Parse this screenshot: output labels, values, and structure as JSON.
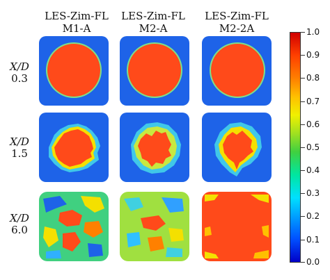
{
  "column_titles": [
    {
      "line1": "LES-Zim-FL",
      "line2": "M1-A"
    },
    {
      "line1": "LES-Zim-FL",
      "line2": "M2-A"
    },
    {
      "line1": "LES-Zim-FL",
      "line2": "M2-2A"
    }
  ],
  "row_labels": [
    {
      "var": "X/D",
      "value": "0.3"
    },
    {
      "var": "X/D",
      "value": "1.5"
    },
    {
      "var": "X/D",
      "value": "6.0"
    }
  ],
  "colorbar": {
    "ticks": [
      "1.0",
      "0.9",
      "0.8",
      "0.7",
      "0.6",
      "0.5",
      "0.4",
      "0.3",
      "0.2",
      "0.1",
      "0.0"
    ],
    "colors": [
      "#0000c8",
      "#0050ff",
      "#00a0ff",
      "#00e0ff",
      "#00e6a0",
      "#40d040",
      "#a0e020",
      "#f0f000",
      "#ffc000",
      "#ff8000",
      "#ff4000",
      "#d00000"
    ]
  },
  "colors": {
    "background_low": "#1e63e8",
    "core_high": "#ff4a1a",
    "mid_yellow": "#f4e000",
    "mid_cyan": "#30d8e0"
  }
}
